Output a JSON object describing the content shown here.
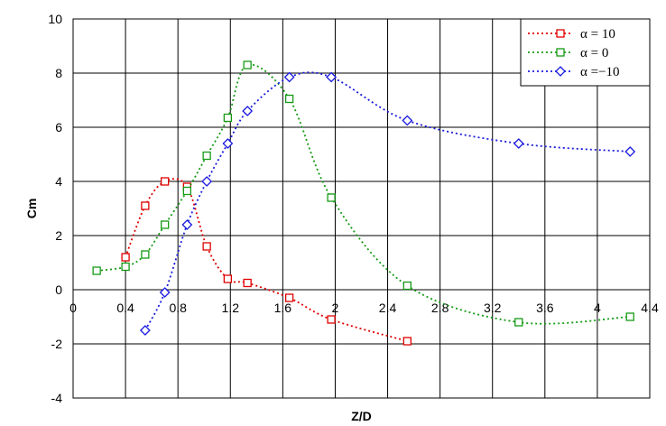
{
  "chart_data": {
    "type": "scatter",
    "title": "",
    "xlabel": "Z/D",
    "ylabel": "Cm",
    "xlim": [
      0,
      4.4
    ],
    "ylim": [
      -4,
      10
    ],
    "x_ticks": [
      0,
      0.4,
      0.8,
      1.2,
      1.6,
      2,
      2.4,
      2.8,
      3.2,
      3.6,
      4,
      4.4
    ],
    "x_tick_labels": [
      "0",
      "0.4",
      "0.8",
      "1.2",
      "1.6",
      "2",
      "2.4",
      "2.8",
      "3.2",
      "3.6",
      "4",
      "4.4"
    ],
    "y_ticks": [
      -4,
      -2,
      0,
      2,
      4,
      6,
      8,
      10
    ],
    "y_tick_labels": [
      "-4",
      "-2",
      "0",
      "2",
      "4",
      "6",
      "8",
      "10"
    ],
    "grid": true,
    "legend_position": "top-right",
    "series": [
      {
        "name": "α = 10",
        "color": "#e00000",
        "marker": "square",
        "x": [
          0.4,
          0.55,
          0.7,
          0.87,
          1.02,
          1.18,
          1.33,
          1.65,
          1.97,
          2.55
        ],
        "y": [
          1.2,
          3.1,
          4.0,
          3.8,
          1.6,
          0.4,
          0.25,
          -0.3,
          -1.1,
          -1.9
        ]
      },
      {
        "name": "α =   0",
        "color": "#159a15",
        "marker": "square",
        "x": [
          0.18,
          0.4,
          0.55,
          0.7,
          0.87,
          1.02,
          1.18,
          1.33,
          1.65,
          1.97,
          2.55,
          3.4,
          4.25
        ],
        "y": [
          0.7,
          0.85,
          1.3,
          2.4,
          3.65,
          4.95,
          6.35,
          8.3,
          7.05,
          3.4,
          0.15,
          -1.2,
          -1.0
        ]
      },
      {
        "name": "α =−10",
        "color": "#1a1ae0",
        "marker": "diamond",
        "x": [
          0.55,
          0.7,
          0.87,
          1.02,
          1.18,
          1.33,
          1.65,
          1.97,
          2.55,
          3.4,
          4.25
        ],
        "y": [
          -1.5,
          -0.1,
          2.4,
          4.0,
          5.4,
          6.6,
          7.85,
          7.85,
          6.25,
          5.4,
          5.1
        ]
      }
    ]
  }
}
